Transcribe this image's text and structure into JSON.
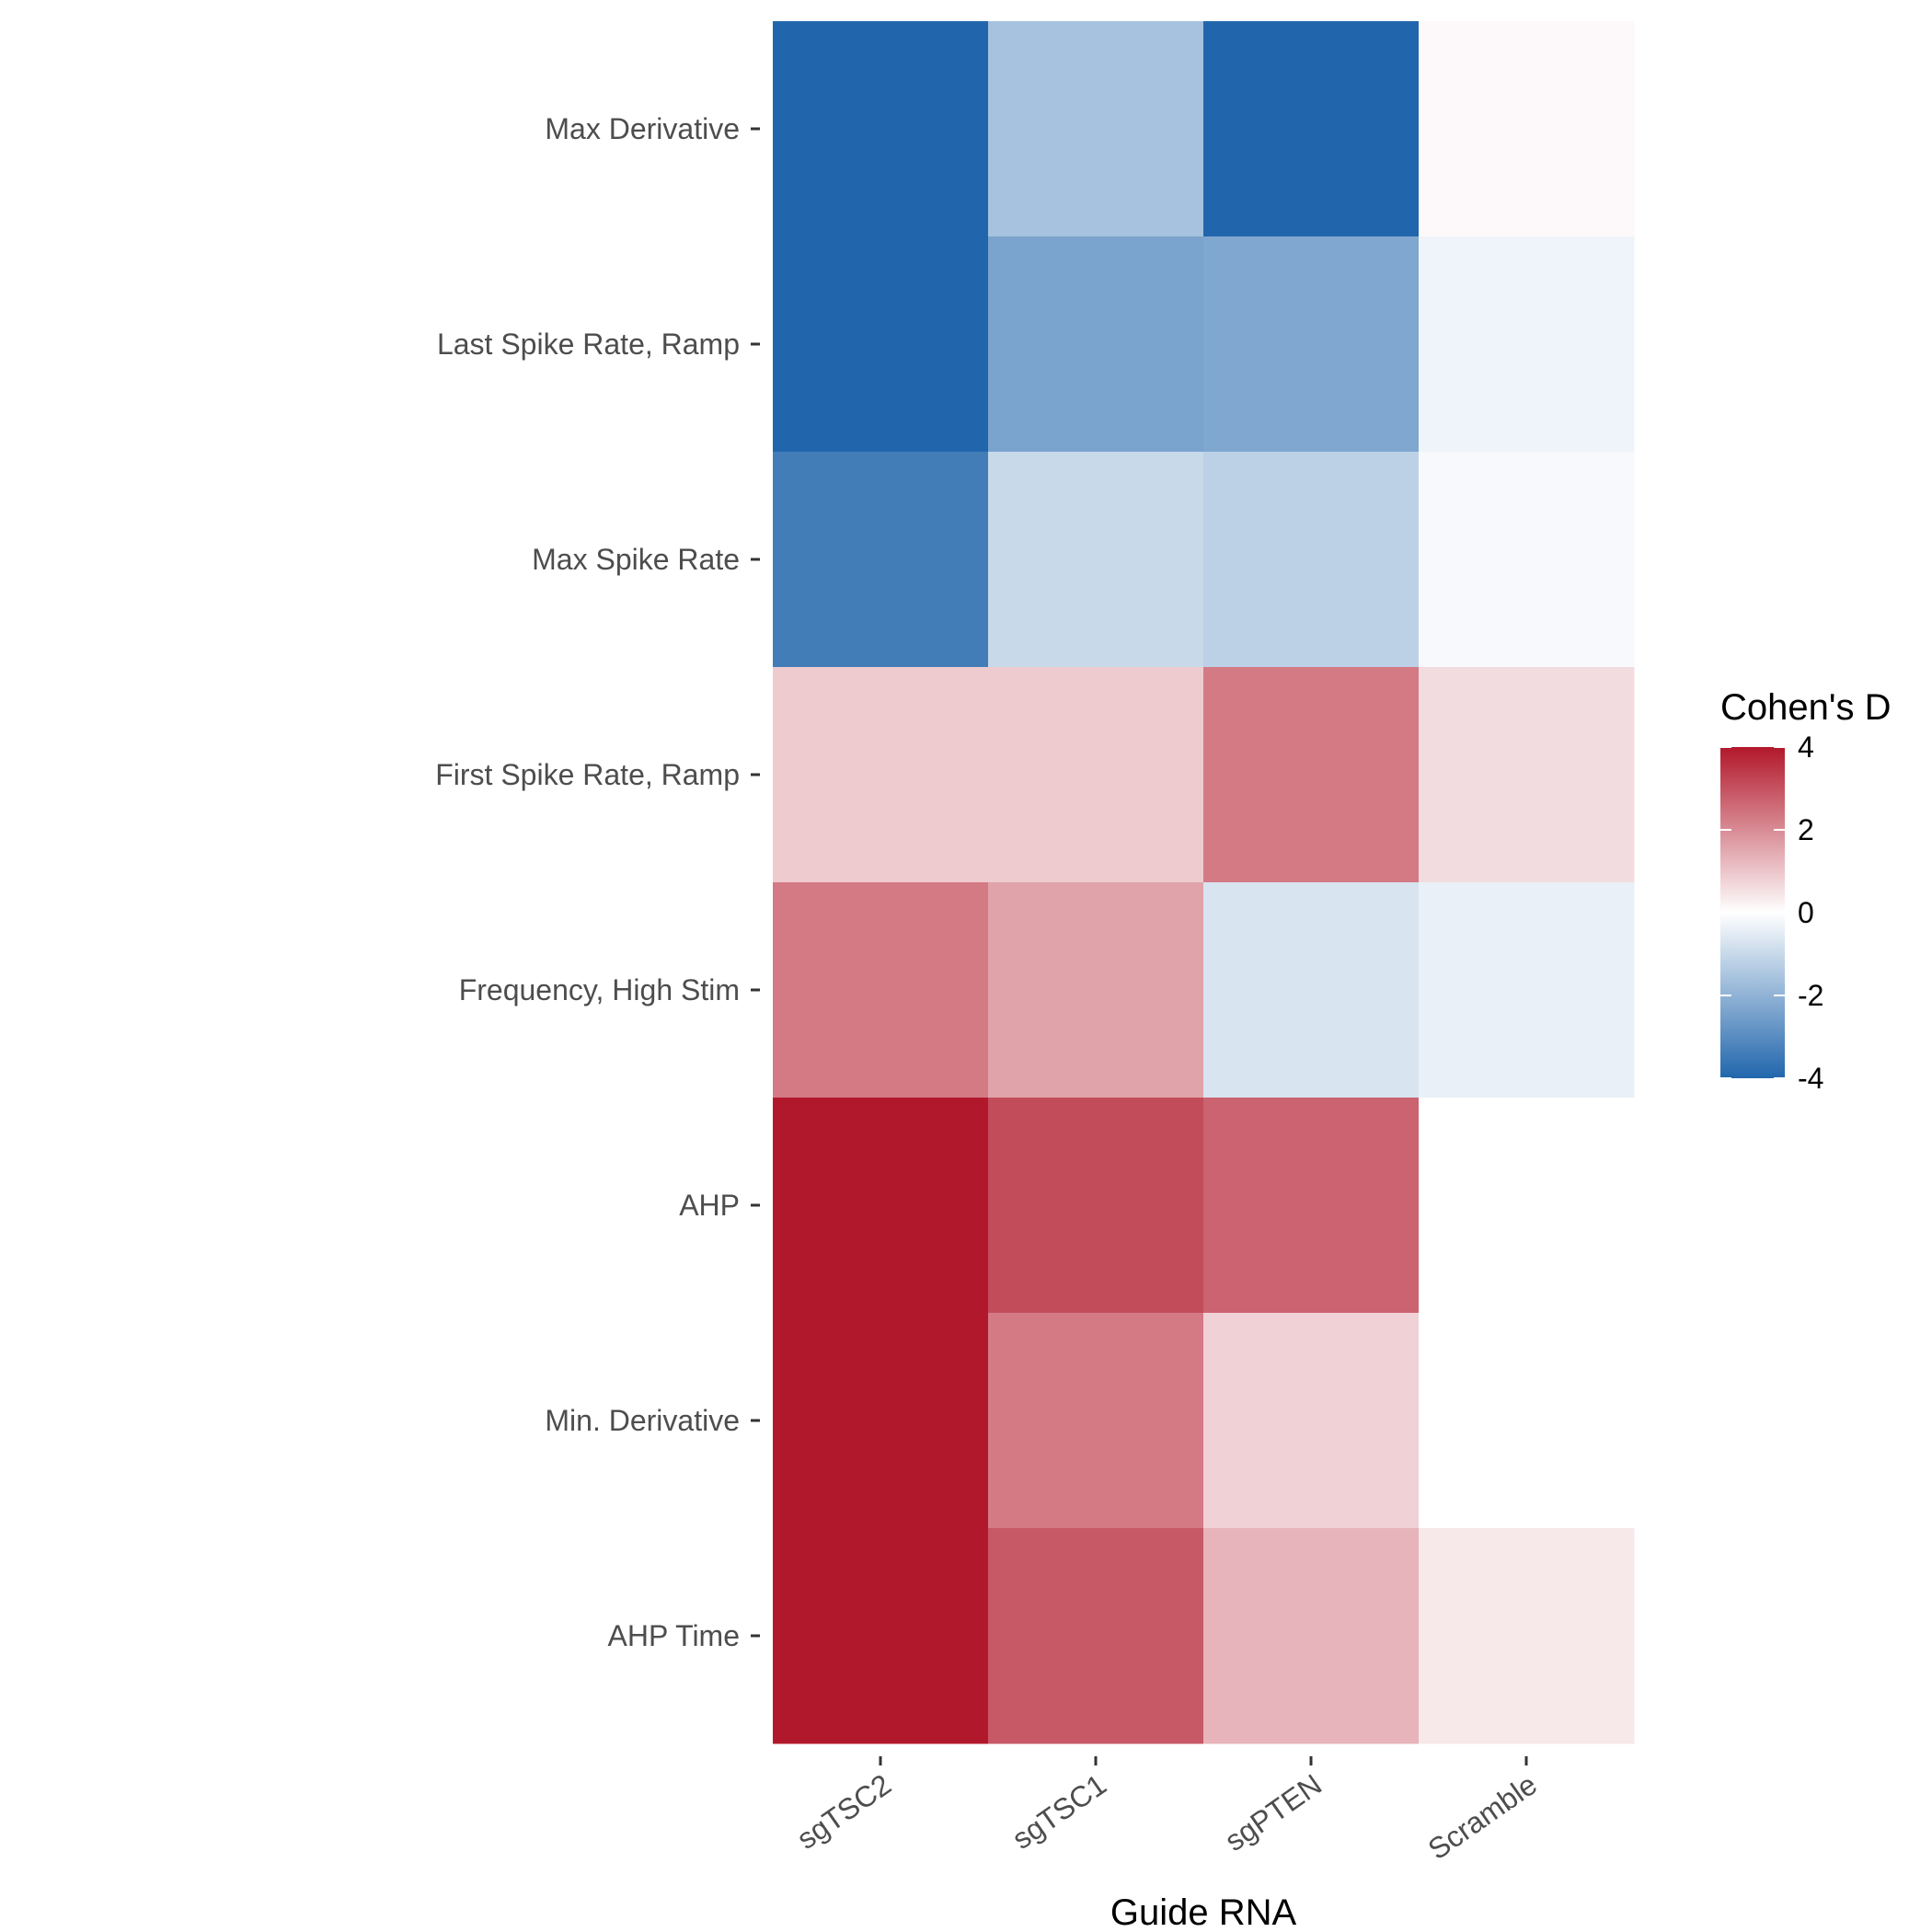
{
  "chart_data": {
    "type": "heatmap",
    "xlabel": "Guide RNA",
    "ylabel": "",
    "x_categories": [
      "sgTSC2",
      "sgTSC1",
      "sgPTEN",
      "Scramble"
    ],
    "y_categories": [
      "Max Derivative",
      "Last Spike Rate, Ramp",
      "Max Spike Rate",
      "First Spike Rate, Ramp",
      "Frequency, High Stim",
      "AHP",
      "Min. Derivative",
      "AHP Time"
    ],
    "values": [
      [
        -4.0,
        -1.6,
        -4.0,
        0.1
      ],
      [
        -4.0,
        -2.4,
        -2.3,
        -0.3
      ],
      [
        -3.4,
        -1.0,
        -1.2,
        -0.15
      ],
      [
        0.9,
        0.9,
        2.3,
        0.6
      ],
      [
        2.3,
        1.6,
        -0.7,
        -0.4
      ],
      [
        4.0,
        3.1,
        2.7,
        0.0
      ],
      [
        4.0,
        2.3,
        0.8,
        0.0
      ],
      [
        4.0,
        2.9,
        1.3,
        0.4
      ]
    ],
    "color_scale": {
      "title": "Cohen's D",
      "min": -4,
      "max": 4,
      "ticks": [
        4,
        2,
        0,
        -2,
        -4
      ],
      "tick_labels": [
        "4",
        "2",
        "0",
        "-2",
        "-4"
      ],
      "low_color": "#2166ac",
      "mid_color": "#ffffff",
      "high_color": "#b2182b"
    },
    "grid": false,
    "legend_position": "right"
  }
}
